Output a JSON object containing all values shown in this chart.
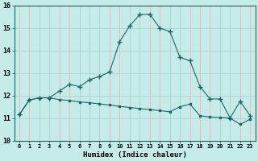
{
  "xlabel": "Humidex (Indice chaleur)",
  "bg_color": "#c5ece8",
  "grid_color": "#d4b8b8",
  "line_color": "#1a6666",
  "xlim": [
    -0.5,
    23.5
  ],
  "ylim": [
    10.0,
    16.0
  ],
  "yticks": [
    10,
    11,
    12,
    13,
    14,
    15,
    16
  ],
  "line1_x": [
    0,
    1,
    2,
    3,
    4,
    5,
    6,
    7,
    8,
    9,
    10,
    11,
    12,
    13,
    14,
    15,
    16,
    17,
    18,
    19,
    20,
    21,
    22,
    23
  ],
  "line1_y": [
    11.15,
    11.8,
    11.9,
    11.9,
    12.2,
    12.5,
    12.4,
    12.7,
    12.85,
    13.05,
    14.4,
    15.1,
    15.6,
    15.62,
    15.0,
    14.85,
    13.7,
    13.55,
    12.4,
    11.85,
    11.85,
    11.0,
    11.75,
    11.1
  ],
  "line2_x": [
    0,
    1,
    2,
    3,
    4,
    5,
    6,
    7,
    8,
    9,
    10,
    11,
    12,
    13,
    14,
    15,
    16,
    17,
    18,
    19,
    20,
    21,
    22,
    23
  ],
  "line2_y": [
    11.15,
    11.8,
    11.9,
    11.9,
    11.82,
    11.78,
    11.72,
    11.68,
    11.63,
    11.58,
    11.52,
    11.47,
    11.42,
    11.38,
    11.33,
    11.28,
    11.5,
    11.62,
    11.1,
    11.05,
    11.03,
    11.0,
    10.72,
    10.95
  ]
}
